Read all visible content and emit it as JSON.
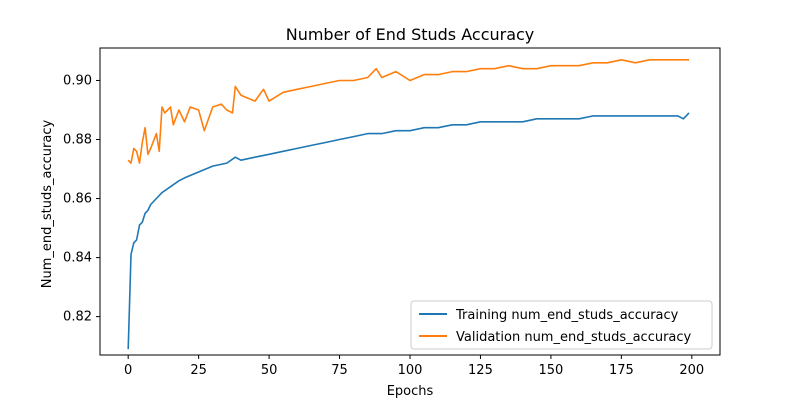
{
  "chart_data": {
    "type": "line",
    "title": "Number of End Studs Accuracy",
    "xlabel": "Epochs",
    "ylabel": "Num_end_studs_accuracy",
    "xlim": [
      -10,
      210
    ],
    "ylim": [
      0.807,
      0.911
    ],
    "xticks": [
      0,
      25,
      50,
      75,
      100,
      125,
      150,
      175,
      200
    ],
    "yticks": [
      0.82,
      0.84,
      0.86,
      0.88,
      0.9
    ],
    "ytick_labels": [
      "0.82",
      "0.84",
      "0.86",
      "0.88",
      "0.90"
    ],
    "grid": false,
    "legend_position": "lower-right",
    "series": [
      {
        "name": "Training num_end_studs_accuracy",
        "color": "#1f77b4",
        "x": [
          0,
          1,
          2,
          3,
          4,
          5,
          6,
          7,
          8,
          10,
          12,
          15,
          18,
          20,
          25,
          30,
          35,
          38,
          40,
          45,
          50,
          55,
          60,
          65,
          70,
          75,
          80,
          85,
          90,
          95,
          100,
          105,
          110,
          115,
          120,
          125,
          130,
          135,
          140,
          145,
          150,
          155,
          160,
          165,
          170,
          175,
          180,
          185,
          190,
          195,
          197,
          199
        ],
        "y": [
          0.809,
          0.841,
          0.845,
          0.846,
          0.851,
          0.852,
          0.855,
          0.856,
          0.858,
          0.86,
          0.862,
          0.864,
          0.866,
          0.867,
          0.869,
          0.871,
          0.872,
          0.874,
          0.873,
          0.874,
          0.875,
          0.876,
          0.877,
          0.878,
          0.879,
          0.88,
          0.881,
          0.882,
          0.882,
          0.883,
          0.883,
          0.884,
          0.884,
          0.885,
          0.885,
          0.886,
          0.886,
          0.886,
          0.886,
          0.887,
          0.887,
          0.887,
          0.887,
          0.888,
          0.888,
          0.888,
          0.888,
          0.888,
          0.888,
          0.888,
          0.887,
          0.889
        ]
      },
      {
        "name": "Validation num_end_studs_accuracy",
        "color": "#ff7f0e",
        "x": [
          0,
          1,
          2,
          3,
          4,
          5,
          6,
          7,
          8,
          10,
          11,
          12,
          13,
          15,
          16,
          18,
          20,
          22,
          25,
          27,
          30,
          33,
          35,
          37,
          38,
          40,
          45,
          48,
          50,
          55,
          60,
          65,
          70,
          75,
          80,
          85,
          88,
          90,
          95,
          100,
          105,
          110,
          115,
          120,
          125,
          130,
          135,
          140,
          145,
          150,
          155,
          160,
          165,
          170,
          175,
          180,
          185,
          190,
          195,
          199
        ],
        "y": [
          0.873,
          0.872,
          0.877,
          0.876,
          0.872,
          0.879,
          0.884,
          0.875,
          0.877,
          0.882,
          0.876,
          0.891,
          0.889,
          0.891,
          0.885,
          0.89,
          0.886,
          0.891,
          0.89,
          0.883,
          0.891,
          0.892,
          0.89,
          0.889,
          0.898,
          0.895,
          0.893,
          0.897,
          0.893,
          0.896,
          0.897,
          0.898,
          0.899,
          0.9,
          0.9,
          0.901,
          0.904,
          0.901,
          0.903,
          0.9,
          0.902,
          0.902,
          0.903,
          0.903,
          0.904,
          0.904,
          0.905,
          0.904,
          0.904,
          0.905,
          0.905,
          0.905,
          0.906,
          0.906,
          0.907,
          0.906,
          0.907,
          0.907,
          0.907,
          0.907
        ]
      }
    ]
  }
}
